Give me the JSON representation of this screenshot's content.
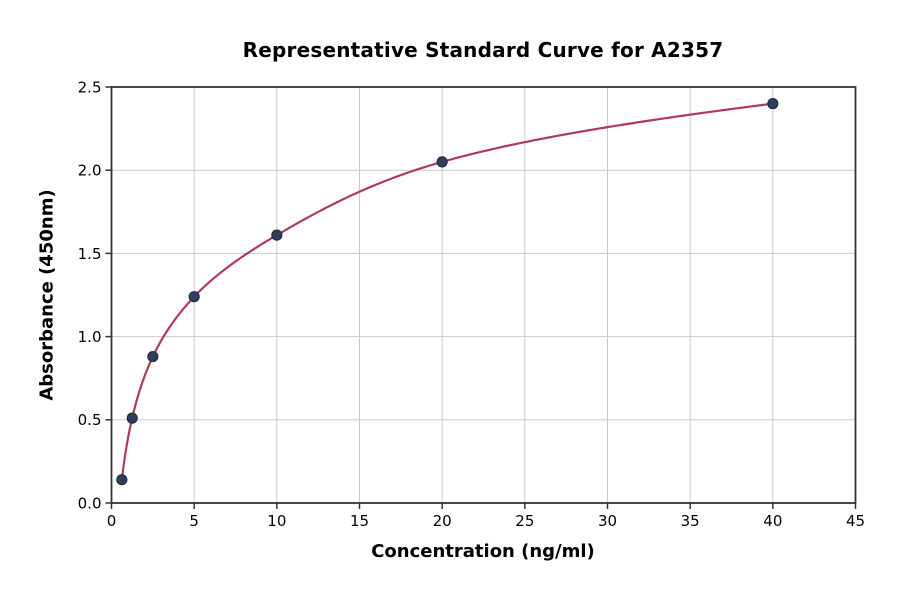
{
  "chart_data": {
    "type": "line",
    "title": "Representative Standard Curve for A2357",
    "xlabel": "Concentration (ng/ml)",
    "ylabel": "Absorbance (450nm)",
    "x": [
      0.625,
      1.25,
      2.5,
      5,
      10,
      20,
      40
    ],
    "y": [
      0.14,
      0.51,
      0.88,
      1.24,
      1.61,
      2.05,
      2.4
    ],
    "xlim": [
      0,
      45
    ],
    "ylim": [
      0,
      2.5
    ],
    "x_ticks": [
      0,
      5,
      10,
      15,
      20,
      25,
      30,
      35,
      40,
      45
    ],
    "x_tick_labels": [
      "0",
      "5",
      "10",
      "15",
      "20",
      "25",
      "30",
      "35",
      "40",
      "45"
    ],
    "y_ticks": [
      0,
      0.5,
      1,
      1.5,
      2,
      2.5
    ],
    "y_tick_labels": [
      "0.0",
      "0.5",
      "1.0",
      "1.5",
      "2.0",
      "2.5"
    ],
    "grid": true,
    "legend_position": "none",
    "marker_style": "circle",
    "colors": {
      "curve": "#b03a5e",
      "marker_fill": "#2e3f5c",
      "marker_edge": "#1f2d45",
      "grid": "#cacaca",
      "spine": "#333333",
      "text": "#000000",
      "background": "#ffffff"
    }
  }
}
